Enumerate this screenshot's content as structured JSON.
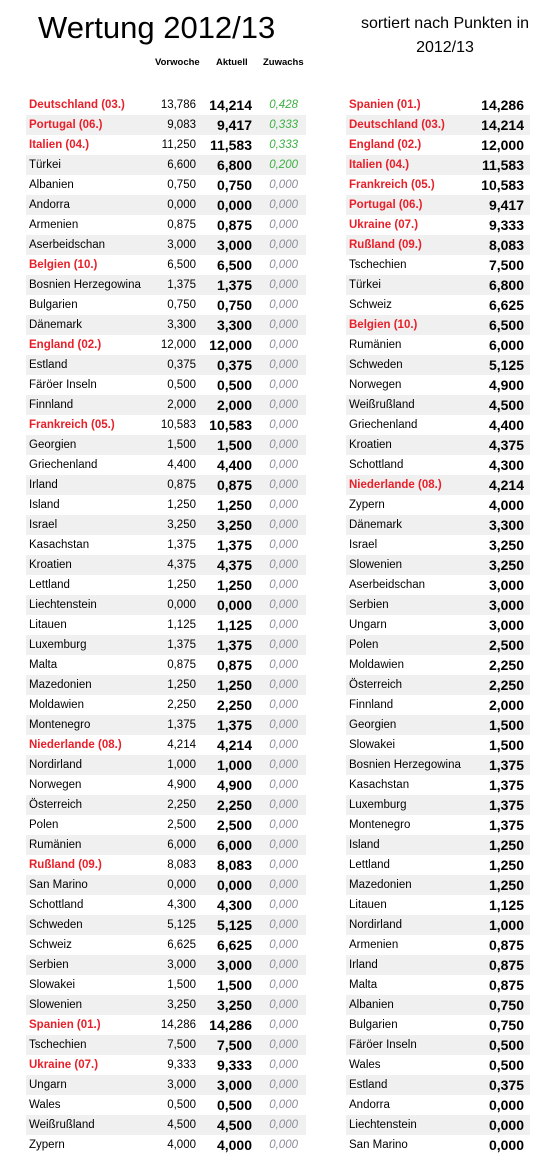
{
  "header": {
    "title": "Wertung 2012/13",
    "subtitle": "sortiert nach Punkten in 2012/13"
  },
  "left_table": {
    "columns": [
      "Vorwoche",
      "Aktuell",
      "Zuwachs"
    ],
    "rows": [
      [
        "Deutschland (03.)",
        "13,786",
        "14,214",
        "0,428"
      ],
      [
        "Portugal (06.)",
        "9,083",
        "9,417",
        "0,333"
      ],
      [
        "Italien (04.)",
        "11,250",
        "11,583",
        "0,333"
      ],
      [
        "Türkei",
        "6,600",
        "6,800",
        "0,200"
      ],
      [
        "Albanien",
        "0,750",
        "0,750",
        "0,000"
      ],
      [
        "Andorra",
        "0,000",
        "0,000",
        "0,000"
      ],
      [
        "Armenien",
        "0,875",
        "0,875",
        "0,000"
      ],
      [
        "Aserbeidschan",
        "3,000",
        "3,000",
        "0,000"
      ],
      [
        "Belgien (10.)",
        "6,500",
        "6,500",
        "0,000"
      ],
      [
        "Bosnien Herzegowina",
        "1,375",
        "1,375",
        "0,000"
      ],
      [
        "Bulgarien",
        "0,750",
        "0,750",
        "0,000"
      ],
      [
        "Dänemark",
        "3,300",
        "3,300",
        "0,000"
      ],
      [
        "England (02.)",
        "12,000",
        "12,000",
        "0,000"
      ],
      [
        "Estland",
        "0,375",
        "0,375",
        "0,000"
      ],
      [
        "Färöer Inseln",
        "0,500",
        "0,500",
        "0,000"
      ],
      [
        "Finnland",
        "2,000",
        "2,000",
        "0,000"
      ],
      [
        "Frankreich (05.)",
        "10,583",
        "10,583",
        "0,000"
      ],
      [
        "Georgien",
        "1,500",
        "1,500",
        "0,000"
      ],
      [
        "Griechenland",
        "4,400",
        "4,400",
        "0,000"
      ],
      [
        "Irland",
        "0,875",
        "0,875",
        "0,000"
      ],
      [
        "Island",
        "1,250",
        "1,250",
        "0,000"
      ],
      [
        "Israel",
        "3,250",
        "3,250",
        "0,000"
      ],
      [
        "Kasachstan",
        "1,375",
        "1,375",
        "0,000"
      ],
      [
        "Kroatien",
        "4,375",
        "4,375",
        "0,000"
      ],
      [
        "Lettland",
        "1,250",
        "1,250",
        "0,000"
      ],
      [
        "Liechtenstein",
        "0,000",
        "0,000",
        "0,000"
      ],
      [
        "Litauen",
        "1,125",
        "1,125",
        "0,000"
      ],
      [
        "Luxemburg",
        "1,375",
        "1,375",
        "0,000"
      ],
      [
        "Malta",
        "0,875",
        "0,875",
        "0,000"
      ],
      [
        "Mazedonien",
        "1,250",
        "1,250",
        "0,000"
      ],
      [
        "Moldawien",
        "2,250",
        "2,250",
        "0,000"
      ],
      [
        "Montenegro",
        "1,375",
        "1,375",
        "0,000"
      ],
      [
        "Niederlande (08.)",
        "4,214",
        "4,214",
        "0,000"
      ],
      [
        "Nordirland",
        "1,000",
        "1,000",
        "0,000"
      ],
      [
        "Norwegen",
        "4,900",
        "4,900",
        "0,000"
      ],
      [
        "Österreich",
        "2,250",
        "2,250",
        "0,000"
      ],
      [
        "Polen",
        "2,500",
        "2,500",
        "0,000"
      ],
      [
        "Rumänien",
        "6,000",
        "6,000",
        "0,000"
      ],
      [
        "Rußland (09.)",
        "8,083",
        "8,083",
        "0,000"
      ],
      [
        "San Marino",
        "0,000",
        "0,000",
        "0,000"
      ],
      [
        "Schottland",
        "4,300",
        "4,300",
        "0,000"
      ],
      [
        "Schweden",
        "5,125",
        "5,125",
        "0,000"
      ],
      [
        "Schweiz",
        "6,625",
        "6,625",
        "0,000"
      ],
      [
        "Serbien",
        "3,000",
        "3,000",
        "0,000"
      ],
      [
        "Slowakei",
        "1,500",
        "1,500",
        "0,000"
      ],
      [
        "Slowenien",
        "3,250",
        "3,250",
        "0,000"
      ],
      [
        "Spanien (01.)",
        "14,286",
        "14,286",
        "0,000"
      ],
      [
        "Tschechien",
        "7,500",
        "7,500",
        "0,000"
      ],
      [
        "Ukraine (07.)",
        "9,333",
        "9,333",
        "0,000"
      ],
      [
        "Ungarn",
        "3,000",
        "3,000",
        "0,000"
      ],
      [
        "Wales",
        "0,500",
        "0,500",
        "0,000"
      ],
      [
        "Weißrußland",
        "4,500",
        "4,500",
        "0,000"
      ],
      [
        "Zypern",
        "4,000",
        "4,000",
        "0,000"
      ]
    ]
  },
  "right_table": {
    "rows": [
      [
        "Spanien (01.)",
        "14,286"
      ],
      [
        "Deutschland (03.)",
        "14,214"
      ],
      [
        "England (02.)",
        "12,000"
      ],
      [
        "Italien (04.)",
        "11,583"
      ],
      [
        "Frankreich (05.)",
        "10,583"
      ],
      [
        "Portugal (06.)",
        "9,417"
      ],
      [
        "Ukraine (07.)",
        "9,333"
      ],
      [
        "Rußland (09.)",
        "8,083"
      ],
      [
        "Tschechien",
        "7,500"
      ],
      [
        "Türkei",
        "6,800"
      ],
      [
        "Schweiz",
        "6,625"
      ],
      [
        "Belgien (10.)",
        "6,500"
      ],
      [
        "Rumänien",
        "6,000"
      ],
      [
        "Schweden",
        "5,125"
      ],
      [
        "Norwegen",
        "4,900"
      ],
      [
        "Weißrußland",
        "4,500"
      ],
      [
        "Griechenland",
        "4,400"
      ],
      [
        "Kroatien",
        "4,375"
      ],
      [
        "Schottland",
        "4,300"
      ],
      [
        "Niederlande (08.)",
        "4,214"
      ],
      [
        "Zypern",
        "4,000"
      ],
      [
        "Dänemark",
        "3,300"
      ],
      [
        "Israel",
        "3,250"
      ],
      [
        "Slowenien",
        "3,250"
      ],
      [
        "Aserbeidschan",
        "3,000"
      ],
      [
        "Serbien",
        "3,000"
      ],
      [
        "Ungarn",
        "3,000"
      ],
      [
        "Polen",
        "2,500"
      ],
      [
        "Moldawien",
        "2,250"
      ],
      [
        "Österreich",
        "2,250"
      ],
      [
        "Finnland",
        "2,000"
      ],
      [
        "Georgien",
        "1,500"
      ],
      [
        "Slowakei",
        "1,500"
      ],
      [
        "Bosnien Herzegowina",
        "1,375"
      ],
      [
        "Kasachstan",
        "1,375"
      ],
      [
        "Luxemburg",
        "1,375"
      ],
      [
        "Montenegro",
        "1,375"
      ],
      [
        "Island",
        "1,250"
      ],
      [
        "Lettland",
        "1,250"
      ],
      [
        "Mazedonien",
        "1,250"
      ],
      [
        "Litauen",
        "1,125"
      ],
      [
        "Nordirland",
        "1,000"
      ],
      [
        "Armenien",
        "0,875"
      ],
      [
        "Irland",
        "0,875"
      ],
      [
        "Malta",
        "0,875"
      ],
      [
        "Albanien",
        "0,750"
      ],
      [
        "Bulgarien",
        "0,750"
      ],
      [
        "Färöer Inseln",
        "0,500"
      ],
      [
        "Wales",
        "0,500"
      ],
      [
        "Estland",
        "0,375"
      ],
      [
        "Andorra",
        "0,000"
      ],
      [
        "Liechtenstein",
        "0,000"
      ],
      [
        "San Marino",
        "0,000"
      ]
    ]
  }
}
